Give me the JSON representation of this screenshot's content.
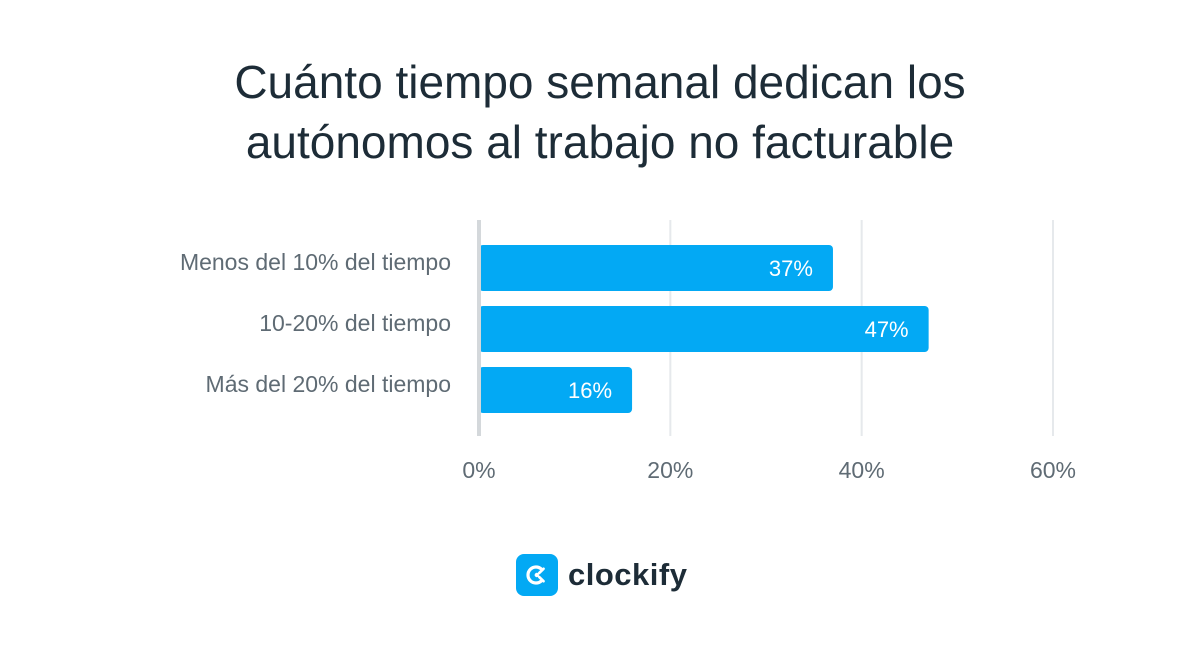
{
  "title_lines": [
    "Cuánto tiempo semanal dedican los",
    "autónomos al trabajo no facturable"
  ],
  "colors": {
    "bar": "#03a9f4",
    "title": "#1d2c37",
    "label": "#5f6b74",
    "grid": "#e6e9ec",
    "axis": "#d4d8db",
    "bar_label": "#ffffff",
    "logo": "#03a9f4"
  },
  "chart_data": {
    "type": "bar",
    "orientation": "horizontal",
    "title": "Cuánto tiempo semanal dedican los autónomos al trabajo no facturable",
    "categories": [
      "Menos del 10% del tiempo",
      "10-20% del tiempo",
      "Más del 20% del tiempo"
    ],
    "values": [
      37,
      47,
      16
    ],
    "value_labels": [
      "37%",
      "47%",
      "16%"
    ],
    "x_ticks": [
      0,
      20,
      40,
      60
    ],
    "x_tick_labels": [
      "0%",
      "20%",
      "40%",
      "60%"
    ],
    "xlim": [
      0,
      60
    ],
    "xlabel": "",
    "ylabel": "",
    "grid": true,
    "legend": "none"
  },
  "logo": {
    "text": "clockify",
    "icon": "clockify-logo-icon"
  }
}
